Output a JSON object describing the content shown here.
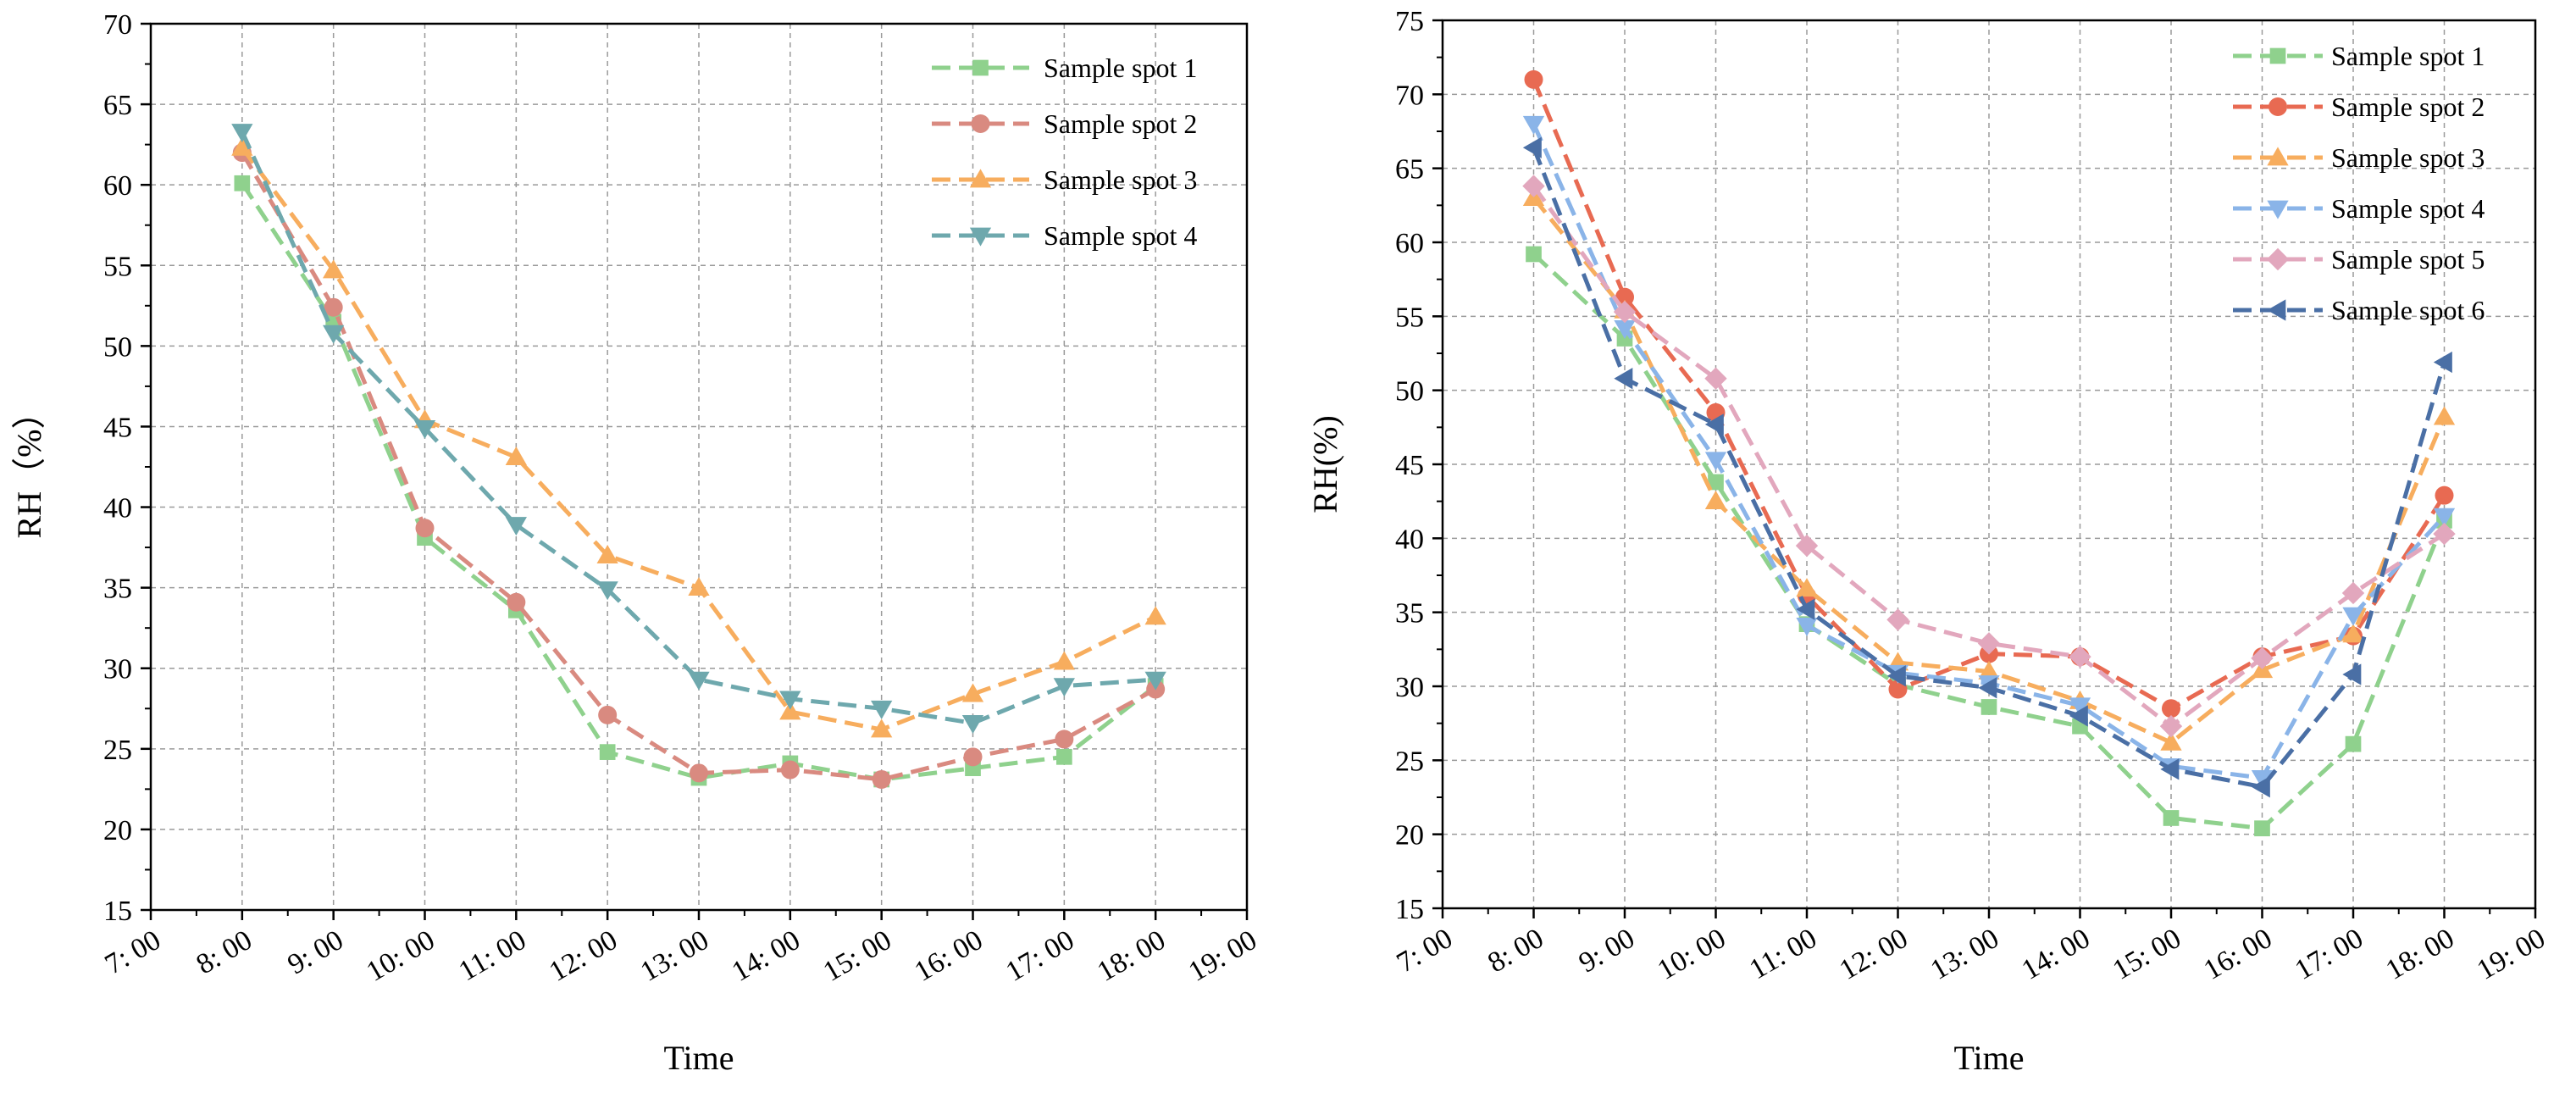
{
  "chart_data": [
    {
      "type": "line",
      "title": "",
      "xlabel": "Time",
      "ylabel": "RH（%）",
      "x_ticks": [
        "7: 00",
        "8: 00",
        "9: 00",
        "10: 00",
        "11: 00",
        "12: 00",
        "13: 00",
        "14: 00",
        "15: 00",
        "16: 00",
        "17: 00",
        "18: 00",
        "19: 00"
      ],
      "ylim": [
        15,
        70
      ],
      "y_ticks": [
        15,
        20,
        25,
        30,
        35,
        40,
        45,
        50,
        55,
        60,
        65,
        70
      ],
      "grid": true,
      "legend_position": "top-right",
      "categories": [
        "8: 00",
        "9: 00",
        "10: 00",
        "11: 00",
        "12: 00",
        "13: 00",
        "14: 00",
        "15: 00",
        "16: 00",
        "17: 00",
        "18: 00"
      ],
      "series": [
        {
          "name": "Sample spot 1",
          "color": "#8fd18d",
          "marker": "square",
          "values": [
            60.1,
            51.5,
            38.1,
            33.6,
            24.8,
            23.2,
            24.1,
            23.1,
            23.8,
            24.5,
            28.9
          ]
        },
        {
          "name": "Sample spot 2",
          "color": "#d98a80",
          "marker": "circle",
          "values": [
            62.0,
            52.4,
            38.7,
            34.1,
            27.1,
            23.5,
            23.7,
            23.1,
            24.5,
            25.6,
            28.7
          ]
        },
        {
          "name": "Sample spot 3",
          "color": "#f7ad5e",
          "marker": "triangle-up",
          "values": [
            62.3,
            54.7,
            45.4,
            43.1,
            37.0,
            35.0,
            27.3,
            26.2,
            28.4,
            30.4,
            33.2
          ]
        },
        {
          "name": "Sample spot 4",
          "color": "#6ea8ad",
          "marker": "triangle-down",
          "values": [
            63.3,
            50.8,
            44.9,
            38.9,
            34.9,
            29.3,
            28.1,
            27.5,
            26.6,
            28.9,
            29.3
          ]
        }
      ]
    },
    {
      "type": "line",
      "title": "",
      "xlabel": "Time",
      "ylabel": "RH(%)",
      "x_ticks": [
        "7: 00",
        "8: 00",
        "9: 00",
        "10: 00",
        "11: 00",
        "12: 00",
        "13: 00",
        "14: 00",
        "15: 00",
        "16: 00",
        "17: 00",
        "18: 00",
        "19: 00"
      ],
      "ylim": [
        15,
        75
      ],
      "y_ticks": [
        15,
        20,
        25,
        30,
        35,
        40,
        45,
        50,
        55,
        60,
        65,
        70,
        75
      ],
      "grid": true,
      "legend_position": "top-right",
      "categories": [
        "8: 00",
        "9: 00",
        "10: 00",
        "11: 00",
        "12: 00",
        "13: 00",
        "14: 00",
        "15: 00",
        "16: 00",
        "17: 00",
        "18: 00"
      ],
      "series": [
        {
          "name": "Sample spot 1",
          "color": "#8fd18d",
          "marker": "square",
          "values": [
            59.2,
            53.5,
            43.8,
            34.2,
            30.1,
            28.6,
            27.3,
            21.1,
            20.4,
            26.1,
            41.2
          ]
        },
        {
          "name": "Sample spot 2",
          "color": "#e86a52",
          "marker": "circle",
          "values": [
            71.0,
            56.3,
            48.5,
            36.1,
            29.8,
            32.2,
            32.0,
            28.5,
            32.0,
            33.4,
            42.9
          ]
        },
        {
          "name": "Sample spot 3",
          "color": "#f7ad5e",
          "marker": "triangle-up",
          "values": [
            63.0,
            55.4,
            42.5,
            36.6,
            31.6,
            31.0,
            29.0,
            26.2,
            31.1,
            33.5,
            48.2
          ]
        },
        {
          "name": "Sample spot 4",
          "color": "#8ab4e8",
          "marker": "triangle-down",
          "values": [
            68.0,
            54.2,
            45.3,
            34.1,
            30.9,
            30.2,
            28.7,
            24.6,
            23.8,
            34.8,
            41.5
          ]
        },
        {
          "name": "Sample spot 5",
          "color": "#e2a7bd",
          "marker": "diamond",
          "values": [
            63.8,
            55.3,
            50.8,
            39.5,
            34.5,
            32.9,
            32.0,
            27.3,
            31.9,
            36.3,
            40.3
          ]
        },
        {
          "name": "Sample spot 6",
          "color": "#4a6fa5",
          "marker": "triangle-left",
          "values": [
            66.4,
            50.8,
            47.7,
            35.2,
            30.7,
            29.9,
            28.0,
            24.4,
            23.2,
            30.8,
            51.9
          ]
        }
      ]
    }
  ]
}
